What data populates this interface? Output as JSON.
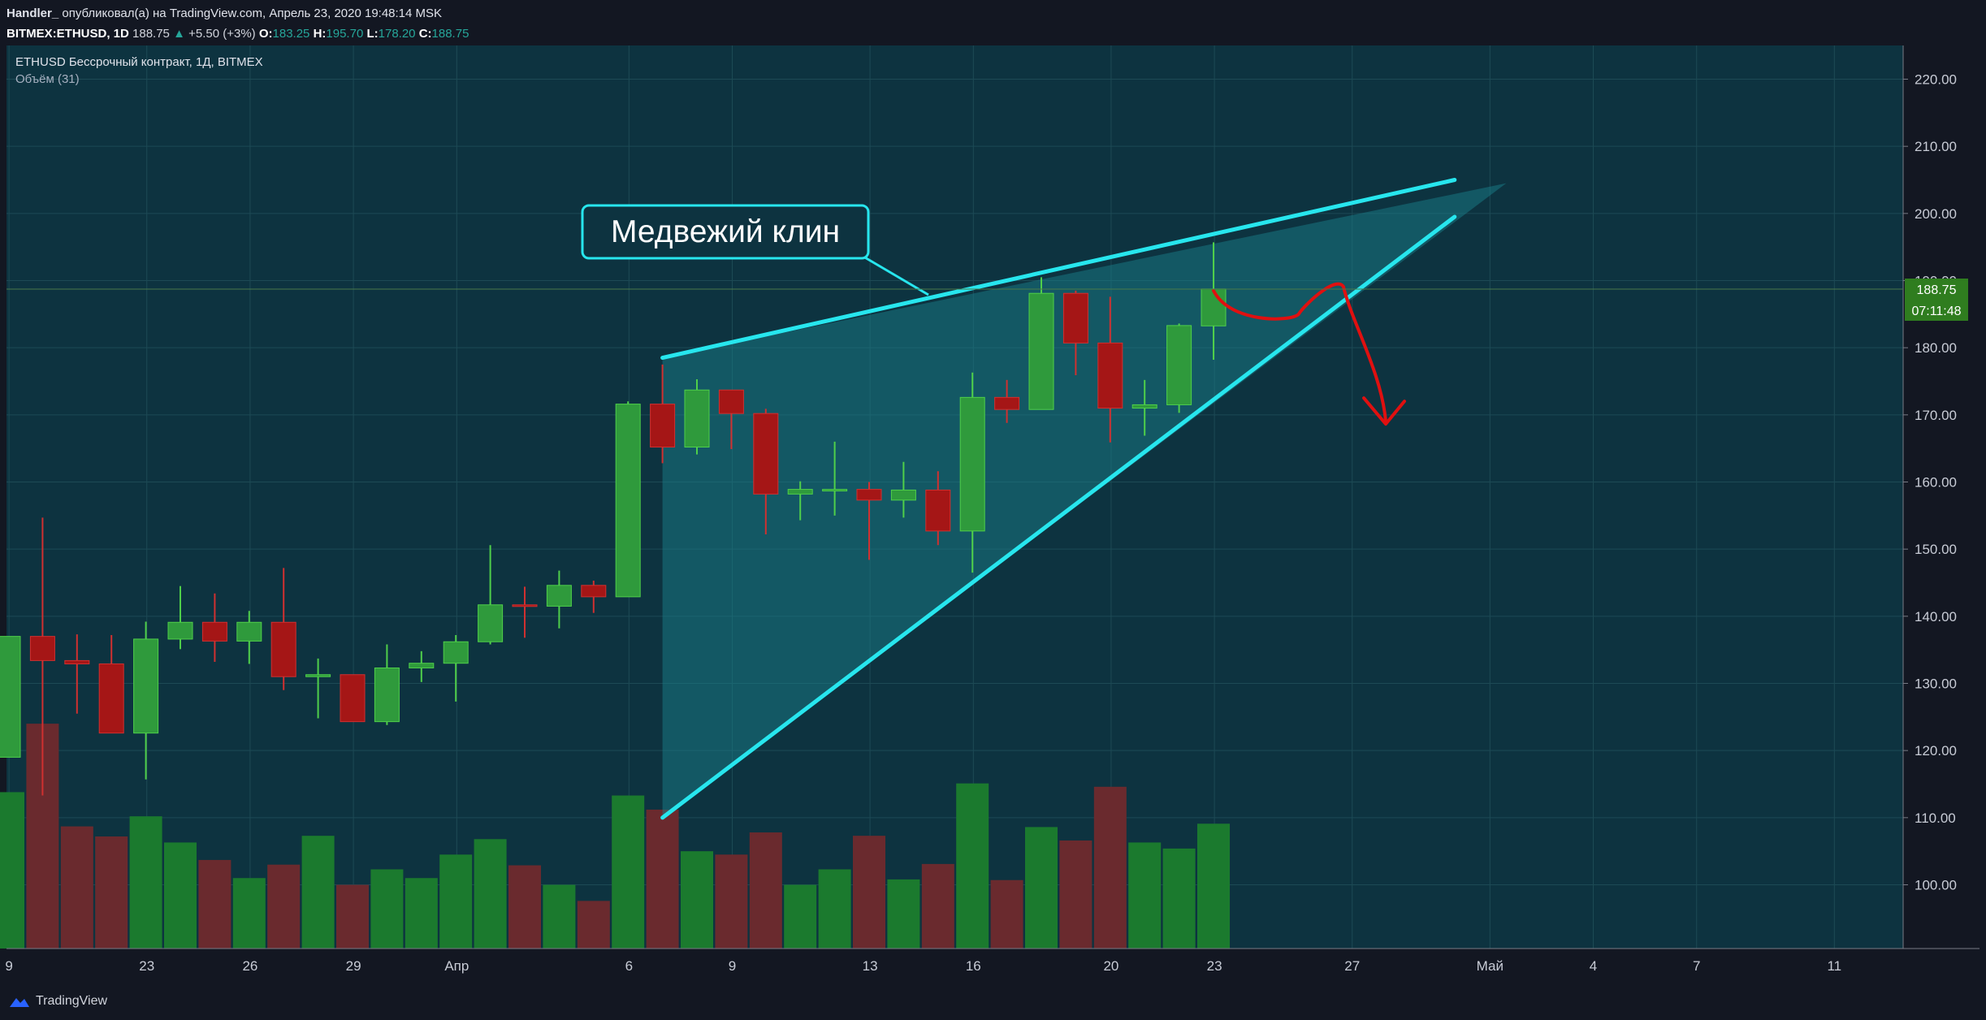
{
  "header": {
    "author": "Handler_",
    "published": "опубликовал(а) на TradingView.com, Апрель 23, 2020 19:48:14 MSK",
    "symbol": "BITMEX:ETHUSD, 1D",
    "last": "188.75",
    "change": "+5.50 (+3%)",
    "open_label": "O:",
    "open": "183.25",
    "high_label": "H:",
    "high": "195.70",
    "low_label": "L:",
    "low": "178.20",
    "close_label": "C:",
    "close": "188.75"
  },
  "legend": {
    "title": "ETHUSD Бессрочный контракт, 1Д, BITMEX",
    "volume": "Объём (31)"
  },
  "annotation": {
    "text": "Медвежий клин"
  },
  "price_label": "188.75",
  "timer_label": "07:11:48",
  "footer": {
    "brand": "TradingView"
  },
  "colors": {
    "background": "#0d3340",
    "grid": "#1d4a55",
    "up": "#2f9a3c",
    "down": "#a51616",
    "vol_up": "#1b7a2e",
    "vol_down": "#6a2a2e",
    "wedge_line": "#27e6ee",
    "arrow": "#e01010",
    "price_label_bg": "#2f7d1f"
  },
  "icons": {
    "brand": "tradingview-cloud-icon"
  },
  "chart_data": {
    "type": "candlestick",
    "x_tick_labels": [
      "9",
      "23",
      "26",
      "29",
      "Апр",
      "6",
      "9",
      "13",
      "16",
      "20",
      "23",
      "27",
      "Май",
      "4",
      "7",
      "11"
    ],
    "y_tick_labels": [
      "220.00",
      "210.00",
      "200.00",
      "190.00",
      "180.00",
      "170.00",
      "160.00",
      "150.00",
      "140.00",
      "130.00",
      "120.00",
      "110.00",
      "100.00"
    ],
    "ylim": [
      90.5,
      222.5
    ],
    "candles": [
      {
        "o": 137.0,
        "h": 137.0,
        "l": 119.0,
        "c": 119.0,
        "up": true
      },
      {
        "o": 137.0,
        "h": 154.7,
        "l": 113.3,
        "c": 133.4,
        "up": false
      },
      {
        "o": 133.4,
        "h": 137.3,
        "l": 125.5,
        "c": 132.9,
        "up": false
      },
      {
        "o": 132.9,
        "h": 137.2,
        "l": 122.8,
        "c": 122.6,
        "up": false
      },
      {
        "o": 122.6,
        "h": 139.2,
        "l": 115.7,
        "c": 136.6,
        "up": true
      },
      {
        "o": 136.6,
        "h": 144.5,
        "l": 135.1,
        "c": 139.1,
        "up": true
      },
      {
        "o": 139.1,
        "h": 143.4,
        "l": 133.2,
        "c": 136.3,
        "up": false
      },
      {
        "o": 136.3,
        "h": 140.8,
        "l": 132.9,
        "c": 139.1,
        "up": true
      },
      {
        "o": 139.1,
        "h": 147.2,
        "l": 129.0,
        "c": 131.0,
        "up": false
      },
      {
        "o": 131.0,
        "h": 133.7,
        "l": 124.8,
        "c": 131.3,
        "up": true
      },
      {
        "o": 131.3,
        "h": 131.3,
        "l": 124.3,
        "c": 124.3,
        "up": false
      },
      {
        "o": 124.3,
        "h": 135.8,
        "l": 123.8,
        "c": 132.3,
        "up": true
      },
      {
        "o": 132.3,
        "h": 134.8,
        "l": 130.2,
        "c": 133.0,
        "up": true
      },
      {
        "o": 133.0,
        "h": 137.2,
        "l": 127.3,
        "c": 136.2,
        "up": true
      },
      {
        "o": 136.2,
        "h": 150.6,
        "l": 135.8,
        "c": 141.7,
        "up": true
      },
      {
        "o": 141.7,
        "h": 144.4,
        "l": 136.8,
        "c": 141.5,
        "up": false
      },
      {
        "o": 141.5,
        "h": 146.8,
        "l": 138.2,
        "c": 144.6,
        "up": true
      },
      {
        "o": 144.6,
        "h": 145.3,
        "l": 140.5,
        "c": 142.9,
        "up": false
      },
      {
        "o": 142.9,
        "h": 172.0,
        "l": 142.9,
        "c": 171.6,
        "up": true
      },
      {
        "o": 171.6,
        "h": 177.5,
        "l": 162.8,
        "c": 165.2,
        "up": false
      },
      {
        "o": 165.2,
        "h": 175.3,
        "l": 164.1,
        "c": 173.7,
        "up": true
      },
      {
        "o": 173.7,
        "h": 173.7,
        "l": 164.9,
        "c": 170.2,
        "up": false
      },
      {
        "o": 170.2,
        "h": 170.9,
        "l": 152.2,
        "c": 158.2,
        "up": false
      },
      {
        "o": 158.2,
        "h": 160.1,
        "l": 154.3,
        "c": 158.9,
        "up": true
      },
      {
        "o": 158.9,
        "h": 166.0,
        "l": 155.0,
        "c": 158.9,
        "up": true
      },
      {
        "o": 158.9,
        "h": 160.0,
        "l": 148.4,
        "c": 157.3,
        "up": false
      },
      {
        "o": 157.3,
        "h": 163.0,
        "l": 154.7,
        "c": 158.8,
        "up": true
      },
      {
        "o": 158.8,
        "h": 161.6,
        "l": 150.6,
        "c": 152.7,
        "up": false
      },
      {
        "o": 152.7,
        "h": 176.3,
        "l": 146.5,
        "c": 172.6,
        "up": true
      },
      {
        "o": 172.6,
        "h": 175.2,
        "l": 168.8,
        "c": 170.8,
        "up": false
      },
      {
        "o": 170.8,
        "h": 190.5,
        "l": 170.8,
        "c": 188.1,
        "up": true
      },
      {
        "o": 188.1,
        "h": 188.5,
        "l": 175.9,
        "c": 180.7,
        "up": false
      },
      {
        "o": 180.7,
        "h": 187.6,
        "l": 165.9,
        "c": 171.0,
        "up": false
      },
      {
        "o": 171.0,
        "h": 175.2,
        "l": 166.9,
        "c": 171.5,
        "up": true
      },
      {
        "o": 171.5,
        "h": 183.6,
        "l": 170.3,
        "c": 183.3,
        "up": true
      },
      {
        "o": 183.25,
        "h": 195.7,
        "l": 178.2,
        "c": 188.75,
        "up": true
      }
    ],
    "volume": [
      {
        "v": 113.8,
        "up": true
      },
      {
        "v": 124.0,
        "up": false
      },
      {
        "v": 108.7,
        "up": false
      },
      {
        "v": 107.2,
        "up": false
      },
      {
        "v": 110.2,
        "up": true
      },
      {
        "v": 106.3,
        "up": true
      },
      {
        "v": 103.7,
        "up": false
      },
      {
        "v": 101.0,
        "up": true
      },
      {
        "v": 103.0,
        "up": false
      },
      {
        "v": 107.3,
        "up": true
      },
      {
        "v": 100.0,
        "up": false
      },
      {
        "v": 102.3,
        "up": true
      },
      {
        "v": 101.0,
        "up": true
      },
      {
        "v": 104.5,
        "up": true
      },
      {
        "v": 106.8,
        "up": true
      },
      {
        "v": 102.9,
        "up": false
      },
      {
        "v": 100.0,
        "up": true
      },
      {
        "v": 97.6,
        "up": false
      },
      {
        "v": 113.3,
        "up": true
      },
      {
        "v": 111.2,
        "up": false
      },
      {
        "v": 105.0,
        "up": true
      },
      {
        "v": 104.5,
        "up": false
      },
      {
        "v": 107.8,
        "up": false
      },
      {
        "v": 100.0,
        "up": true
      },
      {
        "v": 102.3,
        "up": true
      },
      {
        "v": 107.3,
        "up": false
      },
      {
        "v": 100.8,
        "up": true
      },
      {
        "v": 103.1,
        "up": false
      },
      {
        "v": 115.1,
        "up": true
      },
      {
        "v": 100.7,
        "up": false
      },
      {
        "v": 108.6,
        "up": true
      },
      {
        "v": 106.6,
        "up": false
      },
      {
        "v": 114.6,
        "up": false
      },
      {
        "v": 106.3,
        "up": true
      },
      {
        "v": 105.4,
        "up": true
      },
      {
        "v": 109.1,
        "up": true
      }
    ],
    "wedge": {
      "upper": [
        [
          19,
          178.5
        ],
        [
          42,
          205.0
        ]
      ],
      "lower": [
        [
          19,
          110.0
        ],
        [
          42,
          199.5
        ]
      ]
    },
    "forecast_path": [
      [
        35,
        188.5
      ],
      [
        37,
        185
      ],
      [
        38.3,
        189.7
      ],
      [
        39,
        184
      ],
      [
        40,
        169
      ]
    ],
    "grid": true,
    "title": "ETHUSD Бессрочный контракт, 1Д, BITMEX"
  }
}
